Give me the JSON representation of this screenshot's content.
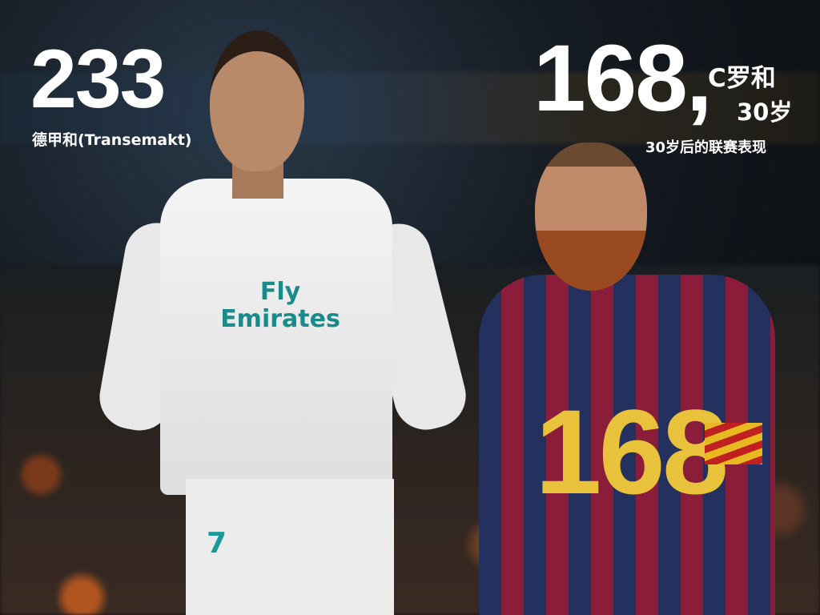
{
  "left_stat": {
    "number": "233",
    "caption": "德甲和(Transemakt)"
  },
  "right_stat": {
    "number": "168,",
    "label_line1": "C罗和",
    "label_line2": "30岁",
    "caption": "30岁后的联赛表现"
  },
  "players": [
    {
      "sponsor": "Fly Emirates",
      "shirt_number": "7",
      "kit_color": "#f2f2f2"
    },
    {
      "shirt_number": "168",
      "kit_colors": [
        "#24305e",
        "#8a1e3a"
      ],
      "number_color": "#e8c23a"
    }
  ]
}
